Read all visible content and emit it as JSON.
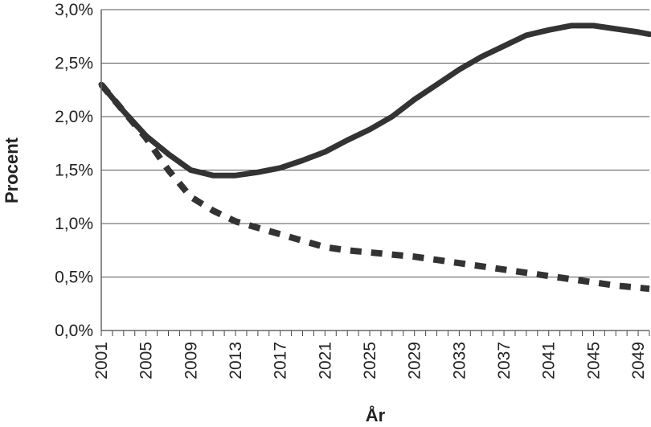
{
  "chart_data": {
    "type": "line",
    "title": "",
    "xlabel": "År",
    "ylabel": "Procent",
    "xlim": [
      2001,
      2050
    ],
    "ylim": [
      0,
      3.0
    ],
    "grid": "horizontal",
    "x_ticks": [
      "2001",
      "2005",
      "2009",
      "2013",
      "2017",
      "2021",
      "2025",
      "2029",
      "2033",
      "2037",
      "2041",
      "2045",
      "2049"
    ],
    "y_ticks": [
      "0,0%",
      "0,5%",
      "1,0%",
      "1,5%",
      "2,0%",
      "2,5%",
      "3,0%"
    ],
    "series": [
      {
        "style": "solid",
        "color": "#333333",
        "points": [
          [
            2001,
            2.3
          ],
          [
            2003,
            2.05
          ],
          [
            2005,
            1.82
          ],
          [
            2007,
            1.65
          ],
          [
            2009,
            1.5
          ],
          [
            2011,
            1.45
          ],
          [
            2013,
            1.45
          ],
          [
            2015,
            1.48
          ],
          [
            2017,
            1.52
          ],
          [
            2019,
            1.59
          ],
          [
            2021,
            1.67
          ],
          [
            2023,
            1.78
          ],
          [
            2025,
            1.88
          ],
          [
            2027,
            2.0
          ],
          [
            2029,
            2.16
          ],
          [
            2031,
            2.3
          ],
          [
            2033,
            2.44
          ],
          [
            2035,
            2.56
          ],
          [
            2037,
            2.66
          ],
          [
            2039,
            2.76
          ],
          [
            2041,
            2.81
          ],
          [
            2043,
            2.85
          ],
          [
            2045,
            2.85
          ],
          [
            2047,
            2.82
          ],
          [
            2049,
            2.79
          ],
          [
            2050,
            2.77
          ]
        ]
      },
      {
        "style": "dashed",
        "color": "#333333",
        "points": [
          [
            2001,
            2.3
          ],
          [
            2003,
            2.05
          ],
          [
            2005,
            1.8
          ],
          [
            2007,
            1.5
          ],
          [
            2009,
            1.25
          ],
          [
            2011,
            1.12
          ],
          [
            2013,
            1.02
          ],
          [
            2015,
            0.96
          ],
          [
            2017,
            0.9
          ],
          [
            2019,
            0.84
          ],
          [
            2021,
            0.78
          ],
          [
            2023,
            0.75
          ],
          [
            2025,
            0.73
          ],
          [
            2027,
            0.71
          ],
          [
            2029,
            0.69
          ],
          [
            2031,
            0.66
          ],
          [
            2033,
            0.63
          ],
          [
            2035,
            0.6
          ],
          [
            2037,
            0.57
          ],
          [
            2039,
            0.54
          ],
          [
            2041,
            0.51
          ],
          [
            2043,
            0.48
          ],
          [
            2045,
            0.45
          ],
          [
            2047,
            0.42
          ],
          [
            2049,
            0.4
          ],
          [
            2050,
            0.39
          ]
        ]
      }
    ]
  }
}
